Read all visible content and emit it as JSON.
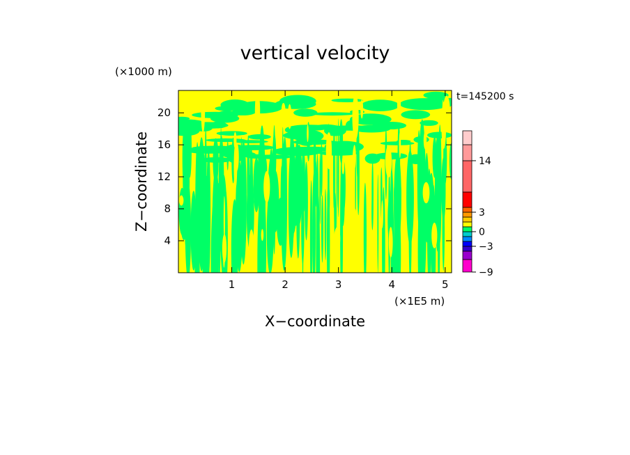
{
  "chart_data": {
    "type": "heatmap",
    "title": "vertical velocity",
    "xlabel": "X−coordinate",
    "ylabel": "Z−coordinate",
    "x_unit": "(×1E5 m)",
    "y_unit": "(×1000 m)",
    "time_label": "t=145200 s",
    "xlim": [
      0,
      5.12
    ],
    "ylim": [
      0,
      22.8
    ],
    "x_ticks": [
      {
        "value": 1,
        "label": "1"
      },
      {
        "value": 2,
        "label": "2"
      },
      {
        "value": 3,
        "label": "3"
      },
      {
        "value": 4,
        "label": "4"
      },
      {
        "value": 5,
        "label": "5"
      }
    ],
    "y_ticks": [
      {
        "value": 4,
        "label": "4"
      },
      {
        "value": 8,
        "label": "8"
      },
      {
        "value": 12,
        "label": "12"
      },
      {
        "value": 16,
        "label": "16"
      },
      {
        "value": 20,
        "label": "20"
      }
    ],
    "field_colors": {
      "background": "#ffff00",
      "contour": "#00ff66"
    },
    "colorbar": {
      "levels": [
        {
          "value": -9,
          "color": "#ff00cc"
        },
        {
          "value": -7,
          "color": "#9900cc"
        },
        {
          "value": -5,
          "color": "#3300cc"
        },
        {
          "value": -3,
          "color": "#0000ff"
        },
        {
          "value": -2,
          "color": "#0088ff"
        },
        {
          "value": -1,
          "color": "#00cccc"
        },
        {
          "value": 0,
          "color": "#00ff66"
        },
        {
          "value": 0.5,
          "color": "#ffff00"
        },
        {
          "value": 1,
          "color": "#ffcc00"
        },
        {
          "value": 2,
          "color": "#ff9900"
        },
        {
          "value": 3,
          "color": "#ff6600"
        },
        {
          "value": 4,
          "color": "#ff0000"
        },
        {
          "value": 8,
          "color": "#ff6666"
        },
        {
          "value": 14,
          "color": "#ff9999"
        },
        {
          "value": 18,
          "color": "#ffcccc"
        }
      ],
      "labels": [
        {
          "value": 14,
          "label": "14"
        },
        {
          "value": 3,
          "label": "3"
        },
        {
          "value": 0,
          "label": "0"
        },
        {
          "value": -3,
          "label": "−3"
        },
        {
          "value": -9,
          "label": "−9"
        }
      ]
    }
  }
}
